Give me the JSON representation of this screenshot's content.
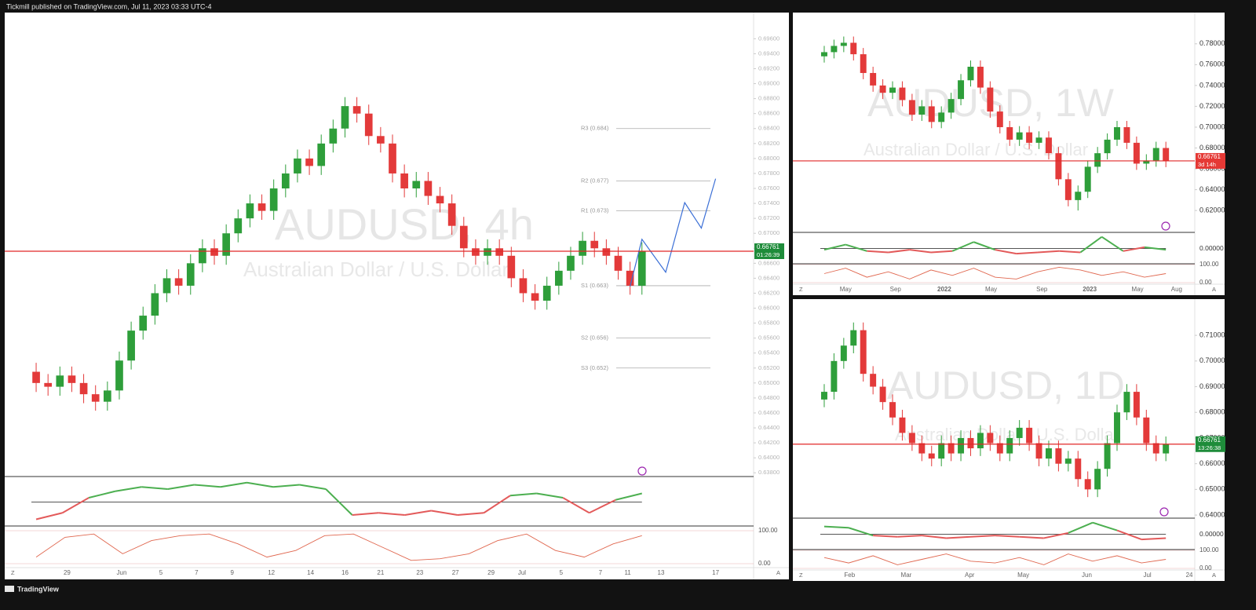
{
  "header": "Tickmill published on TradingView.com, Jul 11, 2023 03:33 UTC-4",
  "footer": "TradingView",
  "chart_data": [
    {
      "type": "candlestick",
      "title": "AUDUSD, 4h",
      "subtitle": "Australian Dollar / U.S. Dollar",
      "up_color": "#2e9e3a",
      "down_color": "#e33a3a",
      "open": [
        0.6515,
        0.65,
        0.6495,
        0.651,
        0.65,
        0.6485,
        0.6475,
        0.649,
        0.653,
        0.657,
        0.659,
        0.662,
        0.664,
        0.663,
        0.666,
        0.668,
        0.667,
        0.67,
        0.672,
        0.674,
        0.673,
        0.676,
        0.678,
        0.68,
        0.679,
        0.682,
        0.684,
        0.687,
        0.686,
        0.683,
        0.682,
        0.678,
        0.676,
        0.677,
        0.675,
        0.674,
        0.671,
        0.668,
        0.667,
        0.668,
        0.667,
        0.664,
        0.662,
        0.661,
        0.663,
        0.665,
        0.667,
        0.669,
        0.668,
        0.667,
        0.665,
        0.663
      ],
      "high": [
        0.6527,
        0.6512,
        0.6522,
        0.6522,
        0.6512,
        0.6497,
        0.6502,
        0.6542,
        0.6582,
        0.6602,
        0.6632,
        0.6652,
        0.6652,
        0.6672,
        0.6692,
        0.6692,
        0.6712,
        0.6732,
        0.6752,
        0.6752,
        0.6772,
        0.6792,
        0.6812,
        0.6812,
        0.6832,
        0.6852,
        0.6882,
        0.6882,
        0.6872,
        0.6842,
        0.6832,
        0.6792,
        0.6782,
        0.6782,
        0.6762,
        0.6752,
        0.6722,
        0.6692,
        0.6692,
        0.6692,
        0.6682,
        0.6652,
        0.6632,
        0.6642,
        0.6662,
        0.6682,
        0.6702,
        0.6702,
        0.6692,
        0.6682,
        0.6662,
        0.6688
      ],
      "low": [
        0.6488,
        0.6483,
        0.6483,
        0.6488,
        0.6473,
        0.6463,
        0.6463,
        0.6478,
        0.6518,
        0.6558,
        0.6578,
        0.6608,
        0.6618,
        0.6618,
        0.6648,
        0.6658,
        0.6658,
        0.6688,
        0.6708,
        0.6718,
        0.6718,
        0.6748,
        0.6768,
        0.6778,
        0.6778,
        0.6808,
        0.6828,
        0.6848,
        0.6818,
        0.6808,
        0.6768,
        0.6748,
        0.6748,
        0.6738,
        0.6728,
        0.6698,
        0.6668,
        0.6658,
        0.6658,
        0.6658,
        0.6628,
        0.6608,
        0.6598,
        0.6598,
        0.6618,
        0.6638,
        0.6658,
        0.6668,
        0.6658,
        0.6638,
        0.6618,
        0.6618
      ],
      "close": [
        0.65,
        0.6495,
        0.651,
        0.65,
        0.6485,
        0.6475,
        0.649,
        0.653,
        0.657,
        0.659,
        0.662,
        0.664,
        0.663,
        0.666,
        0.668,
        0.667,
        0.67,
        0.672,
        0.674,
        0.673,
        0.676,
        0.678,
        0.68,
        0.679,
        0.682,
        0.684,
        0.687,
        0.686,
        0.683,
        0.682,
        0.678,
        0.676,
        0.677,
        0.675,
        0.674,
        0.671,
        0.668,
        0.667,
        0.668,
        0.667,
        0.664,
        0.662,
        0.661,
        0.663,
        0.665,
        0.667,
        0.669,
        0.668,
        0.667,
        0.665,
        0.663,
        0.6676
      ],
      "xlim": [
        -0.4,
        60.4
      ],
      "xticks": [
        {
          "value": 2.6,
          "label": "29"
        },
        {
          "value": 7.2,
          "label": "Jun"
        },
        {
          "value": 10.5,
          "label": "5"
        },
        {
          "value": 13.5,
          "label": "7"
        },
        {
          "value": 16.5,
          "label": "9"
        },
        {
          "value": 19.8,
          "label": "12"
        },
        {
          "value": 23.1,
          "label": "14"
        },
        {
          "value": 26,
          "label": "16"
        },
        {
          "value": 29,
          "label": "21"
        },
        {
          "value": 32.3,
          "label": "23"
        },
        {
          "value": 35.3,
          "label": "27"
        },
        {
          "value": 38.3,
          "label": "29"
        },
        {
          "value": 40.9,
          "label": "Jul"
        },
        {
          "value": 44.2,
          "label": "5"
        },
        {
          "value": 47.5,
          "label": "7"
        },
        {
          "value": 49.8,
          "label": "11"
        },
        {
          "value": 52.6,
          "label": "13"
        },
        {
          "value": 57.2,
          "label": "17"
        }
      ],
      "ylim": [
        0.6375,
        0.6995
      ],
      "yticks": [
        {
          "value": 0.696,
          "label": "0.69600"
        },
        {
          "value": 0.694,
          "label": "0.69400"
        },
        {
          "value": 0.692,
          "label": "0.69200"
        },
        {
          "value": 0.69,
          "label": "0.69000"
        },
        {
          "value": 0.688,
          "label": "0.68800"
        },
        {
          "value": 0.686,
          "label": "0.68600"
        },
        {
          "value": 0.684,
          "label": "0.68400"
        },
        {
          "value": 0.682,
          "label": "0.68200"
        },
        {
          "value": 0.68,
          "label": "0.68000"
        },
        {
          "value": 0.678,
          "label": "0.67800"
        },
        {
          "value": 0.676,
          "label": "0.67600"
        },
        {
          "value": 0.674,
          "label": "0.67400"
        },
        {
          "value": 0.672,
          "label": "0.67200"
        },
        {
          "value": 0.67,
          "label": "0.67000"
        },
        {
          "value": 0.668,
          "label": "0.66800"
        },
        {
          "value": 0.666,
          "label": "0.66600"
        },
        {
          "value": 0.664,
          "label": "0.66400"
        },
        {
          "value": 0.662,
          "label": "0.66200"
        },
        {
          "value": 0.66,
          "label": "0.66000"
        },
        {
          "value": 0.658,
          "label": "0.65800"
        },
        {
          "value": 0.656,
          "label": "0.65600"
        },
        {
          "value": 0.654,
          "label": "0.65400"
        },
        {
          "value": 0.652,
          "label": "0.65200"
        },
        {
          "value": 0.65,
          "label": "0.65000"
        },
        {
          "value": 0.648,
          "label": "0.64800"
        },
        {
          "value": 0.646,
          "label": "0.64600"
        },
        {
          "value": 0.644,
          "label": "0.64400"
        },
        {
          "value": 0.642,
          "label": "0.64200"
        },
        {
          "value": 0.64,
          "label": "0.64000"
        },
        {
          "value": 0.638,
          "label": "0.63800"
        }
      ],
      "last_price": 0.66761,
      "last_price_timer": "01:26:39",
      "last_price_color": "#1e8c3a",
      "pivots": [
        {
          "value": 0.684,
          "label": "R3 (0.684)"
        },
        {
          "value": 0.677,
          "label": "R2 (0.677)"
        },
        {
          "value": 0.673,
          "label": "R1 (0.673)"
        },
        {
          "value": 0.663,
          "label": "S1 (0.663)"
        },
        {
          "value": 0.656,
          "label": "S2 (0.656)"
        },
        {
          "value": 0.652,
          "label": "S3 (0.652)"
        }
      ],
      "projection": {
        "color": "#3b6fd6",
        "x": [
          50,
          51,
          53,
          54.6,
          56,
          57.2
        ],
        "y": [
          0.6629,
          0.6692,
          0.6648,
          0.6741,
          0.6707,
          0.6773
        ]
      },
      "oscillator": {
        "ylim": [
          -1,
          1
        ],
        "up_color": "#4caf50",
        "down_color": "#e35a5a",
        "values": [
          -0.8,
          -0.5,
          0.2,
          0.5,
          0.7,
          0.6,
          0.8,
          0.7,
          0.9,
          0.7,
          0.8,
          0.6,
          -0.6,
          -0.5,
          -0.6,
          -0.4,
          -0.6,
          -0.5,
          0.3,
          0.4,
          0.2,
          -0.5,
          0.1,
          0.4
        ]
      },
      "stoch": {
        "ylim": [
          0,
          100
        ],
        "color": "#e0674f",
        "yticks": [
          {
            "value": 100,
            "label": "100.00"
          },
          {
            "value": 0,
            "label": "0.00"
          }
        ],
        "values": [
          20,
          80,
          90,
          30,
          70,
          85,
          90,
          60,
          20,
          40,
          85,
          90,
          50,
          10,
          15,
          30,
          70,
          90,
          40,
          20,
          60,
          85
        ]
      },
      "buttons": [
        "Z",
        "A"
      ]
    },
    {
      "type": "candlestick",
      "title": "AUDUSD, 1W",
      "subtitle": "Australian Dollar / U.S. Dollar",
      "up_color": "#2e9e3a",
      "down_color": "#e33a3a",
      "open": [
        0.768,
        0.772,
        0.778,
        0.781,
        0.77,
        0.752,
        0.74,
        0.733,
        0.738,
        0.726,
        0.712,
        0.72,
        0.705,
        0.714,
        0.727,
        0.745,
        0.758,
        0.738,
        0.715,
        0.7,
        0.688,
        0.695,
        0.685,
        0.69,
        0.675,
        0.65,
        0.63,
        0.638,
        0.662,
        0.675,
        0.688,
        0.7,
        0.685,
        0.665,
        0.668,
        0.68
      ],
      "high": [
        0.778,
        0.784,
        0.787,
        0.787,
        0.776,
        0.758,
        0.746,
        0.744,
        0.744,
        0.732,
        0.726,
        0.726,
        0.72,
        0.733,
        0.751,
        0.764,
        0.764,
        0.744,
        0.721,
        0.706,
        0.701,
        0.701,
        0.696,
        0.696,
        0.681,
        0.656,
        0.644,
        0.668,
        0.681,
        0.694,
        0.706,
        0.706,
        0.691,
        0.674,
        0.686,
        0.686
      ],
      "low": [
        0.762,
        0.766,
        0.772,
        0.764,
        0.746,
        0.734,
        0.727,
        0.727,
        0.72,
        0.706,
        0.706,
        0.699,
        0.699,
        0.708,
        0.721,
        0.739,
        0.732,
        0.709,
        0.694,
        0.682,
        0.682,
        0.679,
        0.679,
        0.669,
        0.644,
        0.624,
        0.62,
        0.632,
        0.656,
        0.669,
        0.682,
        0.679,
        0.659,
        0.659,
        0.662,
        0.6616
      ],
      "close": [
        0.772,
        0.778,
        0.781,
        0.77,
        0.752,
        0.74,
        0.733,
        0.738,
        0.726,
        0.712,
        0.72,
        0.705,
        0.714,
        0.727,
        0.745,
        0.758,
        0.738,
        0.715,
        0.7,
        0.688,
        0.695,
        0.685,
        0.69,
        0.675,
        0.65,
        0.63,
        0.638,
        0.662,
        0.675,
        0.688,
        0.7,
        0.685,
        0.665,
        0.668,
        0.68,
        0.6676
      ],
      "xlim": [
        -0.4,
        37.8
      ],
      "xticks": [
        {
          "value": 2.2,
          "label": "May"
        },
        {
          "value": 7.3,
          "label": "Sep"
        },
        {
          "value": 12.3,
          "label": "2022",
          "bold": true
        },
        {
          "value": 17.1,
          "label": "May"
        },
        {
          "value": 22.3,
          "label": "Sep"
        },
        {
          "value": 27.2,
          "label": "2023",
          "bold": true
        },
        {
          "value": 32.1,
          "label": "May"
        },
        {
          "value": 36.1,
          "label": "Aug"
        }
      ],
      "ylim": [
        0.599,
        0.81
      ],
      "yticks": [
        {
          "value": 0.78,
          "label": "0.78000"
        },
        {
          "value": 0.76,
          "label": "0.76000"
        },
        {
          "value": 0.74,
          "label": "0.74000"
        },
        {
          "value": 0.72,
          "label": "0.72000"
        },
        {
          "value": 0.7,
          "label": "0.70000"
        },
        {
          "value": 0.68,
          "label": "0.68000"
        },
        {
          "value": 0.66,
          "label": "0.66000"
        },
        {
          "value": 0.64,
          "label": "0.64000"
        },
        {
          "value": 0.62,
          "label": "0.62000"
        }
      ],
      "last_price": 0.66761,
      "last_price_timer": "3d 14h",
      "last_price_color": "#e53935",
      "oscillator": {
        "ylim": [
          -1,
          1
        ],
        "up_color": "#4caf50",
        "down_color": "#e35a5a",
        "yticks": [
          {
            "value": 0,
            "label": "0.00000"
          }
        ],
        "values": [
          -0.1,
          0.3,
          -0.2,
          -0.3,
          -0.1,
          -0.3,
          -0.2,
          0.5,
          -0.1,
          -0.4,
          -0.3,
          -0.2,
          -0.3,
          0.9,
          -0.2,
          0.1,
          -0.1
        ]
      },
      "stoch": {
        "ylim": [
          0,
          100
        ],
        "color": "#e0674f",
        "yticks": [
          {
            "value": 100,
            "label": "100.00"
          },
          {
            "value": 0,
            "label": "0.00"
          }
        ],
        "values": [
          50,
          80,
          30,
          60,
          20,
          70,
          40,
          80,
          30,
          20,
          60,
          85,
          70,
          40,
          60,
          30,
          50
        ]
      },
      "buttons": [
        "Z",
        "A"
      ]
    },
    {
      "type": "candlestick",
      "title": "AUDUSD, 1D",
      "subtitle": "Australian Dollar / U.S. Dollar",
      "up_color": "#2e9e3a",
      "down_color": "#e33a3a",
      "open": [
        0.685,
        0.688,
        0.7,
        0.706,
        0.712,
        0.695,
        0.69,
        0.684,
        0.678,
        0.672,
        0.668,
        0.664,
        0.662,
        0.668,
        0.664,
        0.67,
        0.666,
        0.672,
        0.668,
        0.664,
        0.67,
        0.674,
        0.668,
        0.662,
        0.666,
        0.66,
        0.662,
        0.654,
        0.65,
        0.658,
        0.668,
        0.68,
        0.688,
        0.678,
        0.668,
        0.664
      ],
      "high": [
        0.691,
        0.703,
        0.709,
        0.715,
        0.715,
        0.698,
        0.693,
        0.687,
        0.681,
        0.675,
        0.671,
        0.667,
        0.671,
        0.671,
        0.673,
        0.673,
        0.675,
        0.675,
        0.671,
        0.673,
        0.677,
        0.677,
        0.671,
        0.669,
        0.669,
        0.665,
        0.665,
        0.657,
        0.661,
        0.671,
        0.683,
        0.691,
        0.691,
        0.681,
        0.671,
        0.6706
      ],
      "low": [
        0.682,
        0.685,
        0.697,
        0.703,
        0.692,
        0.687,
        0.681,
        0.675,
        0.669,
        0.665,
        0.661,
        0.659,
        0.659,
        0.661,
        0.661,
        0.663,
        0.663,
        0.665,
        0.661,
        0.661,
        0.667,
        0.665,
        0.659,
        0.659,
        0.657,
        0.657,
        0.651,
        0.647,
        0.647,
        0.655,
        0.665,
        0.677,
        0.675,
        0.665,
        0.661,
        0.661
      ],
      "close": [
        0.688,
        0.7,
        0.706,
        0.712,
        0.695,
        0.69,
        0.684,
        0.678,
        0.672,
        0.668,
        0.664,
        0.662,
        0.668,
        0.664,
        0.67,
        0.666,
        0.672,
        0.668,
        0.664,
        0.67,
        0.674,
        0.668,
        0.662,
        0.666,
        0.66,
        0.662,
        0.654,
        0.65,
        0.658,
        0.668,
        0.68,
        0.688,
        0.678,
        0.668,
        0.664,
        0.6676
      ],
      "xlim": [
        -0.4,
        37.8
      ],
      "xticks": [
        {
          "value": 2.6,
          "label": "Feb"
        },
        {
          "value": 8.4,
          "label": "Mar"
        },
        {
          "value": 14.9,
          "label": "Apr"
        },
        {
          "value": 20.4,
          "label": "May"
        },
        {
          "value": 26.9,
          "label": "Jun"
        },
        {
          "value": 33.1,
          "label": "Jul"
        },
        {
          "value": 37.4,
          "label": "24"
        }
      ],
      "ylim": [
        0.6388,
        0.7241
      ],
      "yticks": [
        {
          "value": 0.71,
          "label": "0.71000"
        },
        {
          "value": 0.7,
          "label": "0.70000"
        },
        {
          "value": 0.69,
          "label": "0.69000"
        },
        {
          "value": 0.68,
          "label": "0.68000"
        },
        {
          "value": 0.67,
          "label": "0.67000"
        },
        {
          "value": 0.66,
          "label": "0.66000"
        },
        {
          "value": 0.65,
          "label": "0.65000"
        },
        {
          "value": 0.64,
          "label": "0.64000"
        }
      ],
      "last_price": 0.66761,
      "last_price_timer": "13:26:38",
      "last_price_color": "#1e8c3a",
      "oscillator": {
        "ylim": [
          -1,
          1
        ],
        "up_color": "#4caf50",
        "down_color": "#e35a5a",
        "yticks": [
          {
            "value": 0,
            "label": "0.00000"
          }
        ],
        "values": [
          0.6,
          0.5,
          -0.1,
          -0.2,
          -0.1,
          -0.3,
          -0.2,
          -0.1,
          -0.2,
          -0.3,
          0.1,
          0.9,
          0.3,
          -0.4,
          -0.3
        ]
      },
      "stoch": {
        "ylim": [
          0,
          100
        ],
        "color": "#e0674f",
        "yticks": [
          {
            "value": 100,
            "label": "100.00"
          },
          {
            "value": 0,
            "label": "0.00"
          }
        ],
        "values": [
          60,
          30,
          70,
          20,
          50,
          80,
          40,
          30,
          60,
          20,
          80,
          40,
          70,
          30,
          50
        ]
      },
      "buttons": [
        "Z",
        "A"
      ]
    }
  ]
}
